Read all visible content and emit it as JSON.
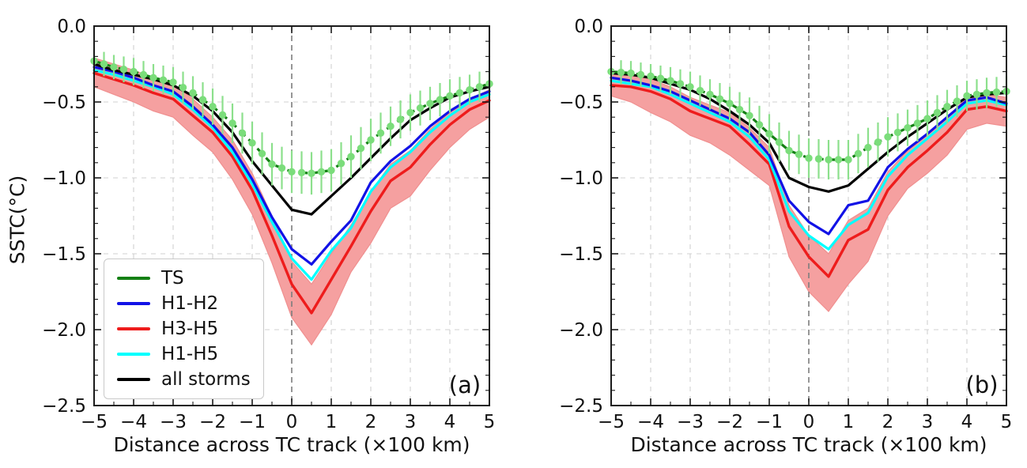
{
  "colors": {
    "frame": "#1a1a1a",
    "grid": "#d0d0d0",
    "zero_line": "#7d7d7d",
    "background": "#ffffff"
  },
  "chart_data": [
    {
      "type": "line",
      "panel_label": "(a)",
      "xlabel": "Distance across TC track (×100 km)",
      "ylabel": "SSTC(°C)",
      "xlim": [
        -5,
        5
      ],
      "ylim": [
        -2.5,
        0
      ],
      "grid": true,
      "ref_x": 0,
      "x_minor_step": 0.5,
      "y_minor_step": 0.1,
      "xticks": {
        "values": [
          -5,
          -4,
          -3,
          -2,
          -1,
          0,
          1,
          2,
          3,
          4,
          5
        ],
        "labels": [
          "−5",
          "−4",
          "−3",
          "−2",
          "−1",
          "0",
          "1",
          "2",
          "3",
          "4",
          "5"
        ]
      },
      "yticks": {
        "values": [
          0,
          -0.5,
          -1,
          -1.5,
          -2,
          -2.5
        ],
        "labels": [
          "0.0",
          "−0.5",
          "−1.0",
          "−1.5",
          "−2.0",
          "−2.5"
        ]
      },
      "x": [
        -5,
        -4.5,
        -4,
        -3.5,
        -3,
        -2.5,
        -2,
        -1.5,
        -1,
        -0.5,
        0,
        0.5,
        1,
        1.5,
        2,
        2.5,
        3,
        3.5,
        4,
        4.5,
        5
      ],
      "series": [
        {
          "name": "TS",
          "color": "#158015",
          "line_style": "dashed",
          "marker": {
            "shape": "circle",
            "color": "#7bdd7b"
          },
          "error_color": "#8ce08c",
          "values": [
            -0.23,
            -0.27,
            -0.3,
            -0.34,
            -0.37,
            -0.44,
            -0.53,
            -0.64,
            -0.77,
            -0.91,
            -0.96,
            -0.97,
            -0.95,
            -0.86,
            -0.75,
            -0.66,
            -0.57,
            -0.51,
            -0.46,
            -0.42,
            -0.38
          ],
          "errors": [
            0.08,
            0.08,
            0.09,
            0.09,
            0.1,
            0.11,
            0.12,
            0.13,
            0.14,
            0.14,
            0.14,
            0.14,
            0.14,
            0.14,
            0.14,
            0.13,
            0.12,
            0.11,
            0.11,
            0.1,
            0.1
          ]
        },
        {
          "name": "H1-H2",
          "color": "#1212e6",
          "values": [
            -0.27,
            -0.3,
            -0.34,
            -0.39,
            -0.43,
            -0.53,
            -0.65,
            -0.8,
            -1.01,
            -1.26,
            -1.47,
            -1.57,
            -1.42,
            -1.28,
            -1.03,
            -0.89,
            -0.79,
            -0.66,
            -0.56,
            -0.48,
            -0.43
          ]
        },
        {
          "name": "H3-H5",
          "color": "#ee1c1c",
          "values": [
            -0.31,
            -0.35,
            -0.39,
            -0.44,
            -0.48,
            -0.59,
            -0.7,
            -0.86,
            -1.08,
            -1.38,
            -1.7,
            -1.89,
            -1.67,
            -1.45,
            -1.22,
            -1.02,
            -0.93,
            -0.78,
            -0.65,
            -0.55,
            -0.49
          ],
          "band": {
            "color": "#f5a0a0",
            "upper": [
              -0.21,
              -0.25,
              -0.29,
              -0.34,
              -0.38,
              -0.48,
              -0.6,
              -0.75,
              -0.97,
              -1.25,
              -1.55,
              -1.7,
              -1.5,
              -1.31,
              -1.09,
              -0.91,
              -0.82,
              -0.68,
              -0.57,
              -0.48,
              -0.42
            ],
            "lower": [
              -0.4,
              -0.45,
              -0.5,
              -0.56,
              -0.6,
              -0.72,
              -0.83,
              -1.01,
              -1.24,
              -1.56,
              -1.92,
              -2.1,
              -1.9,
              -1.62,
              -1.43,
              -1.2,
              -1.12,
              -0.95,
              -0.8,
              -0.68,
              -0.6
            ]
          }
        },
        {
          "name": "H1-H5",
          "color": "#00ffff",
          "values": [
            -0.29,
            -0.32,
            -0.36,
            -0.4,
            -0.45,
            -0.55,
            -0.67,
            -0.83,
            -1.04,
            -1.29,
            -1.53,
            -1.67,
            -1.48,
            -1.33,
            -1.09,
            -0.93,
            -0.83,
            -0.7,
            -0.59,
            -0.5,
            -0.45
          ]
        },
        {
          "name": "all storms",
          "color": "#000000",
          "values": [
            -0.25,
            -0.29,
            -0.32,
            -0.35,
            -0.39,
            -0.46,
            -0.56,
            -0.7,
            -0.89,
            -1.05,
            -1.21,
            -1.24,
            -1.12,
            -1.0,
            -0.87,
            -0.74,
            -0.62,
            -0.54,
            -0.47,
            -0.43,
            -0.4
          ]
        }
      ],
      "legend": {
        "visible": true,
        "location": "lower left"
      }
    },
    {
      "type": "line",
      "panel_label": "(b)",
      "xlabel": "Distance across TC track (×100 km)",
      "ylabel": "",
      "xlim": [
        -5,
        5
      ],
      "ylim": [
        -2.5,
        0
      ],
      "grid": true,
      "ref_x": 0,
      "x_minor_step": 0.5,
      "y_minor_step": 0.1,
      "xticks": {
        "values": [
          -5,
          -4,
          -3,
          -2,
          -1,
          0,
          1,
          2,
          3,
          4,
          5
        ],
        "labels": [
          "−5",
          "−4",
          "−3",
          "−2",
          "−1",
          "0",
          "1",
          "2",
          "3",
          "4",
          "5"
        ]
      },
      "yticks": {
        "values": [
          0,
          -0.5,
          -1,
          -1.5,
          -2,
          -2.5
        ],
        "labels": [
          "0.0",
          "−0.5",
          "−1.0",
          "−1.5",
          "−2.0",
          "−2.5"
        ]
      },
      "x": [
        -5,
        -4.5,
        -4,
        -3.5,
        -3,
        -2.5,
        -2,
        -1.5,
        -1,
        -0.5,
        0,
        0.5,
        1,
        1.5,
        2,
        2.5,
        3,
        3.5,
        4,
        4.5,
        5
      ],
      "series": [
        {
          "name": "TS",
          "color": "#158015",
          "line_style": "dashed",
          "marker": {
            "shape": "circle",
            "color": "#7bdd7b"
          },
          "error_color": "#8ce08c",
          "values": [
            -0.3,
            -0.31,
            -0.33,
            -0.36,
            -0.4,
            -0.45,
            -0.51,
            -0.59,
            -0.71,
            -0.82,
            -0.87,
            -0.88,
            -0.88,
            -0.8,
            -0.73,
            -0.67,
            -0.61,
            -0.53,
            -0.46,
            -0.44,
            -0.43
          ],
          "errors": [
            0.08,
            0.08,
            0.08,
            0.09,
            0.1,
            0.1,
            0.11,
            0.12,
            0.13,
            0.13,
            0.13,
            0.13,
            0.13,
            0.13,
            0.13,
            0.12,
            0.12,
            0.11,
            0.1,
            0.1,
            0.1
          ]
        },
        {
          "name": "H1-H2",
          "color": "#1212e6",
          "values": [
            -0.34,
            -0.36,
            -0.39,
            -0.43,
            -0.49,
            -0.55,
            -0.61,
            -0.7,
            -0.85,
            -1.15,
            -1.29,
            -1.37,
            -1.18,
            -1.15,
            -0.93,
            -0.81,
            -0.71,
            -0.6,
            -0.49,
            -0.47,
            -0.51
          ]
        },
        {
          "name": "H3-H5",
          "color": "#ee1c1c",
          "values": [
            -0.39,
            -0.4,
            -0.43,
            -0.48,
            -0.56,
            -0.61,
            -0.66,
            -0.78,
            -0.91,
            -1.32,
            -1.52,
            -1.65,
            -1.41,
            -1.34,
            -1.08,
            -0.93,
            -0.82,
            -0.7,
            -0.55,
            -0.53,
            -0.56
          ],
          "band": {
            "color": "#f5a0a0",
            "upper": [
              -0.3,
              -0.32,
              -0.35,
              -0.4,
              -0.47,
              -0.52,
              -0.57,
              -0.67,
              -0.8,
              -1.18,
              -1.38,
              -1.5,
              -1.28,
              -1.2,
              -0.96,
              -0.82,
              -0.72,
              -0.6,
              -0.47,
              -0.45,
              -0.47
            ],
            "lower": [
              -0.46,
              -0.5,
              -0.57,
              -0.63,
              -0.72,
              -0.77,
              -0.85,
              -0.95,
              -1.05,
              -1.52,
              -1.75,
              -1.88,
              -1.7,
              -1.55,
              -1.25,
              -1.07,
              -0.97,
              -0.85,
              -0.68,
              -0.64,
              -0.66
            ]
          }
        },
        {
          "name": "H1-H5",
          "color": "#00ffff",
          "values": [
            -0.36,
            -0.38,
            -0.4,
            -0.45,
            -0.51,
            -0.57,
            -0.63,
            -0.73,
            -0.88,
            -1.22,
            -1.38,
            -1.47,
            -1.31,
            -1.23,
            -0.99,
            -0.85,
            -0.74,
            -0.63,
            -0.51,
            -0.49,
            -0.52
          ]
        },
        {
          "name": "all storms",
          "color": "#000000",
          "values": [
            -0.31,
            -0.32,
            -0.34,
            -0.38,
            -0.42,
            -0.48,
            -0.56,
            -0.65,
            -0.77,
            -1.0,
            -1.06,
            -1.09,
            -1.05,
            -0.94,
            -0.83,
            -0.73,
            -0.64,
            -0.55,
            -0.47,
            -0.45,
            -0.44
          ]
        }
      ],
      "legend": {
        "visible": false
      }
    }
  ]
}
